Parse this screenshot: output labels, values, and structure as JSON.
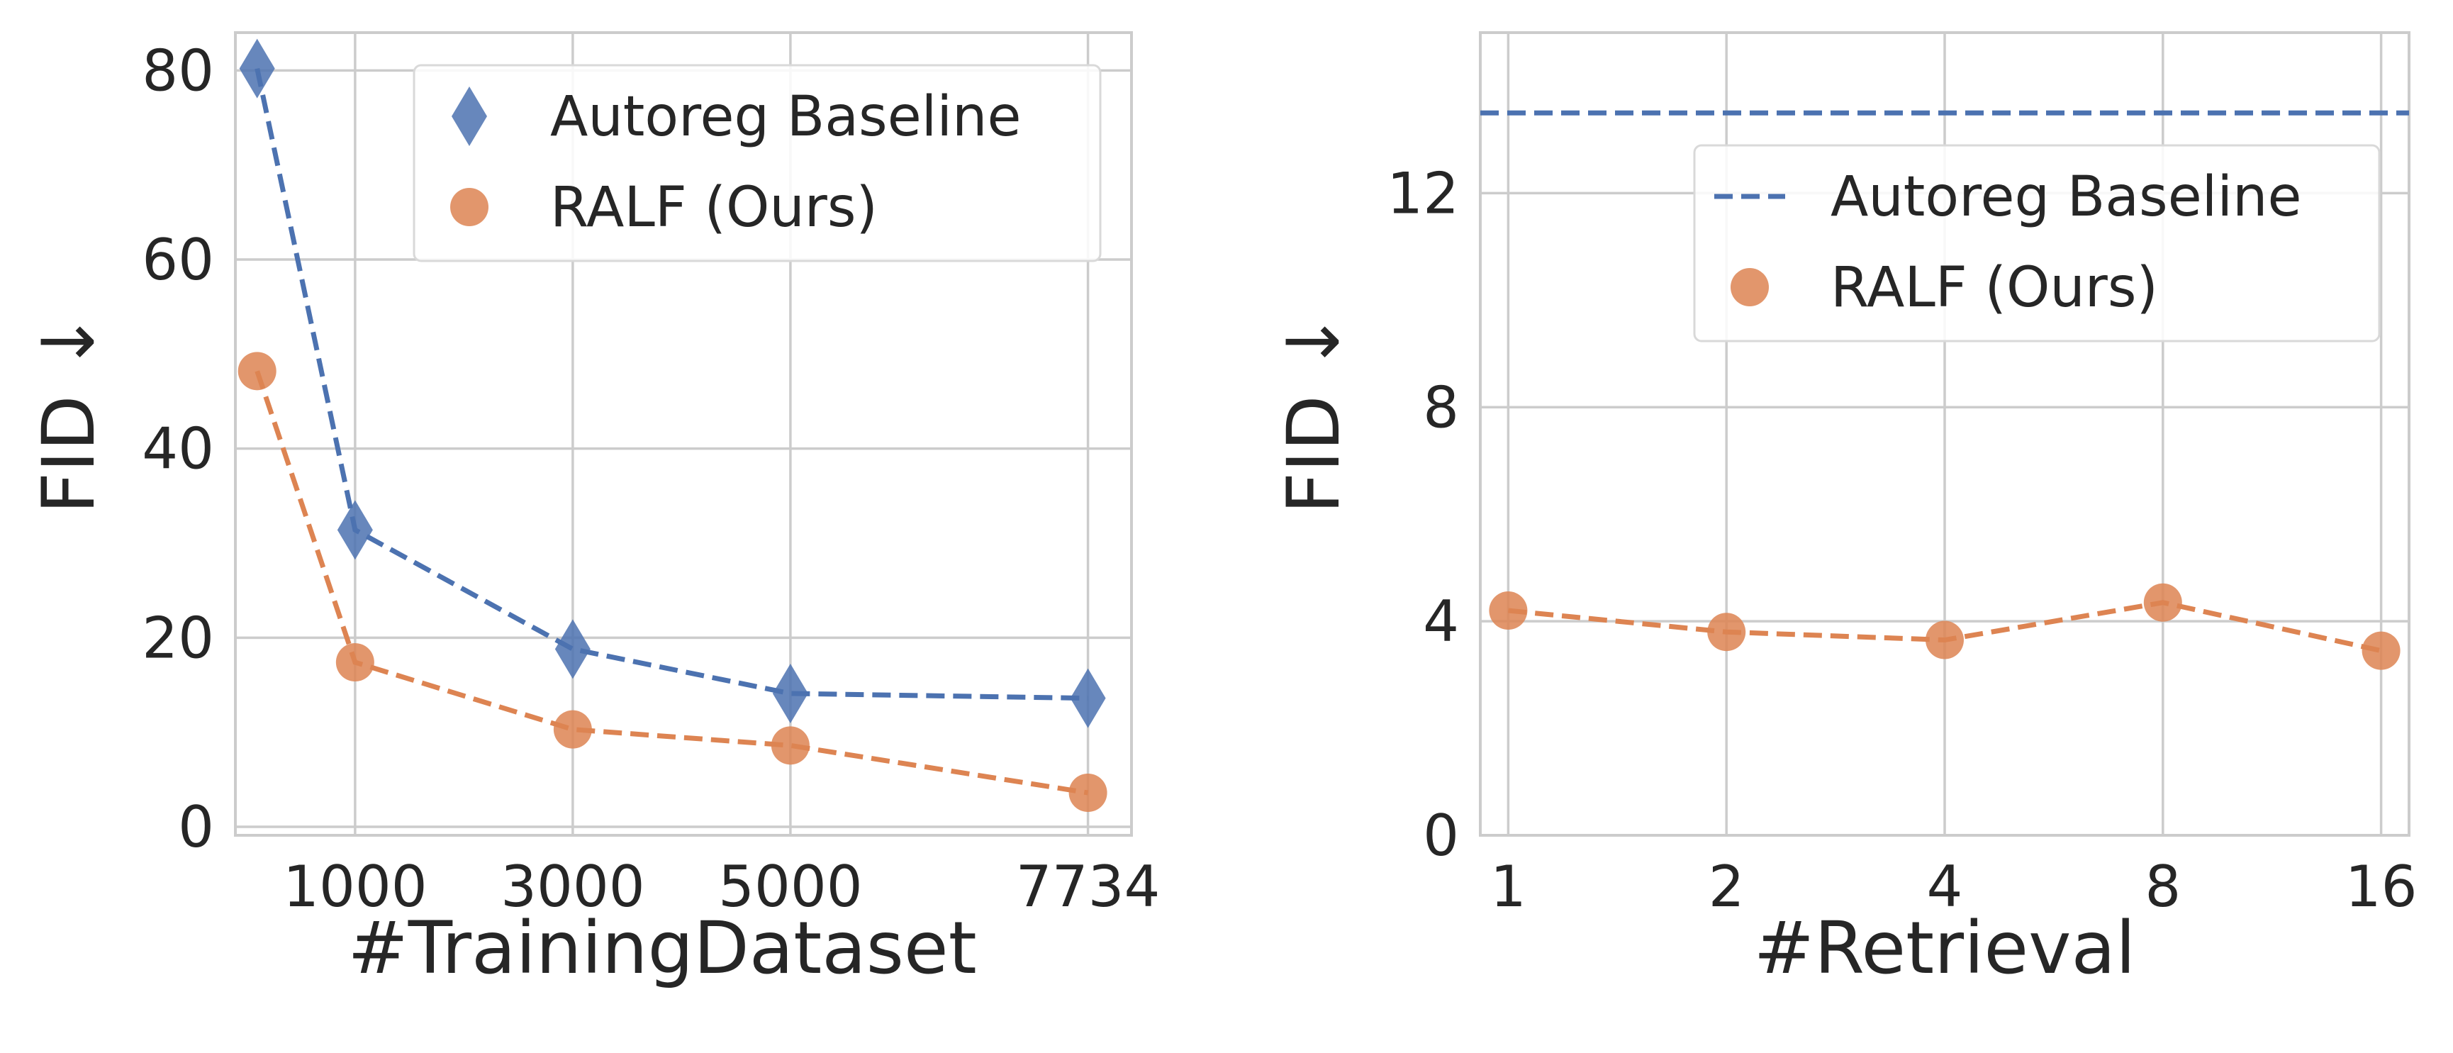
{
  "chart_data": [
    {
      "type": "line",
      "x": [
        100,
        1000,
        3000,
        5000,
        7734
      ],
      "xticks": [
        1000,
        3000,
        5000,
        7734
      ],
      "xlim": [
        -100,
        8134
      ],
      "ylim": [
        -0.9,
        84
      ],
      "yticks": [
        0,
        20,
        40,
        60,
        80
      ],
      "xlabel": "#TrainingDataset",
      "ylabel": "FID ↓",
      "grid": true,
      "legend": "top-right",
      "series": [
        {
          "name": "Autoreg Baseline",
          "values": [
            80.2,
            31.4,
            18.8,
            14.1,
            13.6
          ],
          "marker": "diamond",
          "color": "#4c72b0"
        },
        {
          "name": "RALF (Ours)",
          "values": [
            48.2,
            17.4,
            10.3,
            8.6,
            3.6
          ],
          "marker": "circle",
          "color": "#dd8452"
        }
      ]
    },
    {
      "type": "line",
      "x": [
        1,
        2,
        4,
        8,
        16
      ],
      "xticks": [
        1,
        2,
        4,
        8,
        16
      ],
      "xscale": "log2",
      "ylim": [
        0,
        15
      ],
      "yticks": [
        0,
        4,
        8,
        12
      ],
      "xlabel": "#Retrieval",
      "ylabel": "FID ↓",
      "grid": true,
      "legend": "upper-right",
      "series": [
        {
          "name": "Autoreg Baseline",
          "style": "dashed-horizontal",
          "constant": 13.5,
          "color": "#4c72b0"
        },
        {
          "name": "RALF (Ours)",
          "values": [
            4.2,
            3.8,
            3.65,
            4.35,
            3.45
          ],
          "marker": "circle",
          "color": "#dd8452"
        }
      ]
    }
  ]
}
